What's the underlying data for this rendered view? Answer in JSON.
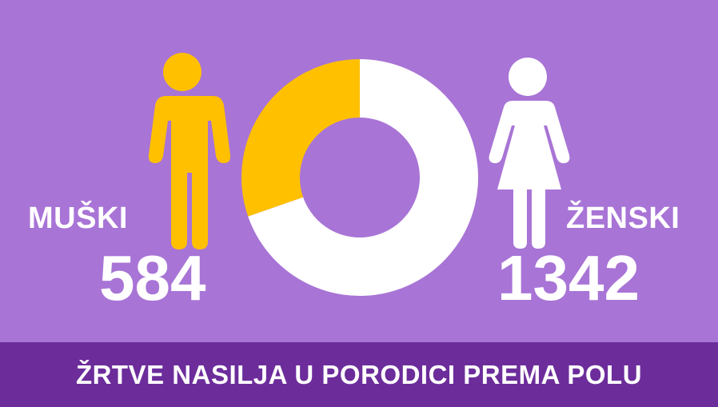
{
  "title": "ŽRTVE NASILJA U PORODICI PREMA POLU",
  "colors": {
    "background": "#a874d6",
    "footer": "#6c2d9b",
    "male": "#ffc000",
    "female": "#ffffff",
    "text": "#ffffff"
  },
  "icons": {
    "male": "male-person-icon",
    "female": "female-person-icon"
  },
  "chart_data": {
    "type": "pie",
    "title": "ŽRTVE NASILJA U PORODICI PREMA POLU",
    "donut": true,
    "series": [
      {
        "name": "MUŠKI",
        "value": 584,
        "color": "#ffc000"
      },
      {
        "name": "ŽENSKI",
        "value": 1342,
        "color": "#ffffff"
      }
    ]
  }
}
